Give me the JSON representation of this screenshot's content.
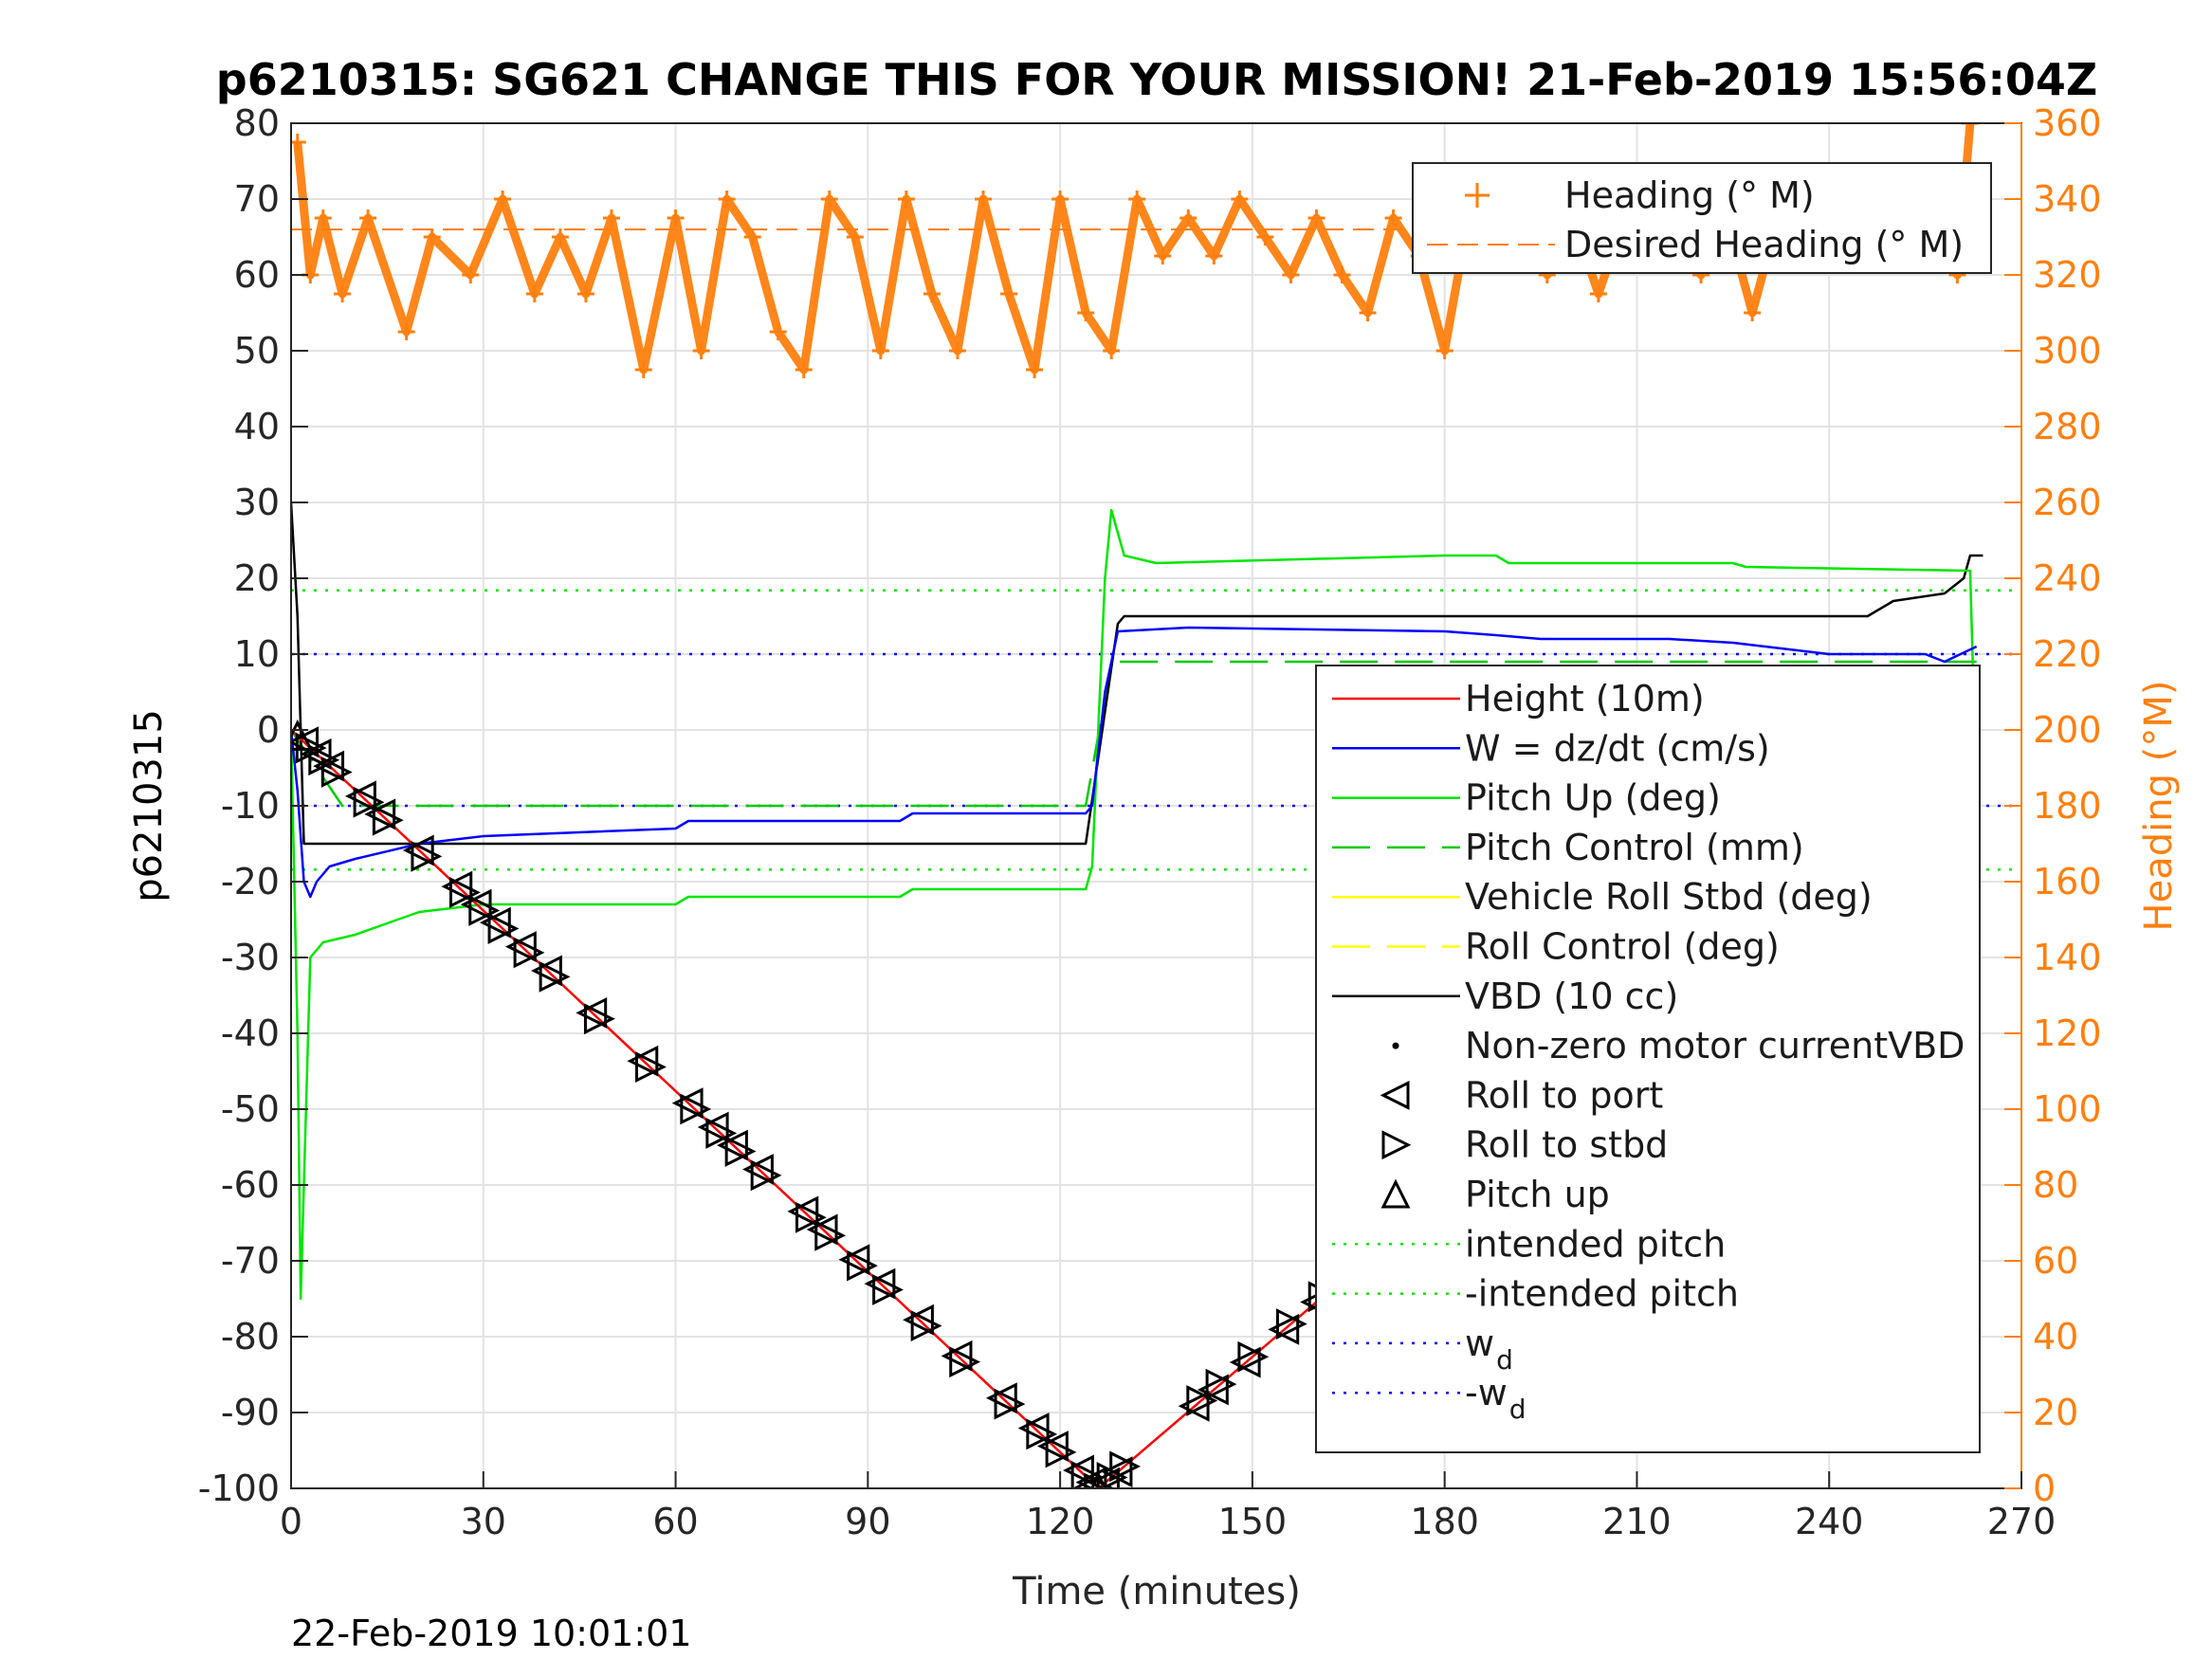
{
  "chart_data": {
    "type": "line",
    "title": "p6210315: SG621 CHANGE THIS FOR YOUR MISSION! 21-Feb-2019 15:56:04Z",
    "xlabel": "Time (minutes)",
    "ylabel_left": "p6210315",
    "ylabel_right": "Heading (°M)",
    "footer": "22-Feb-2019 10:01:01",
    "xlim": [
      0,
      270
    ],
    "ylim_left": [
      -100,
      80
    ],
    "ylim_right": [
      0,
      360
    ],
    "xticks": [
      "0",
      "30",
      "60",
      "90",
      "120",
      "150",
      "180",
      "210",
      "240",
      "270"
    ],
    "yticks_left": [
      "80",
      "70",
      "60",
      "50",
      "40",
      "30",
      "20",
      "10",
      "0",
      "-10",
      "-20",
      "-30",
      "-40",
      "-50",
      "-60",
      "-70",
      "-80",
      "-90",
      "-100"
    ],
    "yticks_right": [
      "360",
      "340",
      "320",
      "300",
      "280",
      "260",
      "240",
      "220",
      "200",
      "180",
      "160",
      "140",
      "120",
      "100",
      "80",
      "60",
      "40",
      "20",
      "0"
    ],
    "grid": true,
    "legend_top": {
      "placement": "top-right",
      "entries": [
        "Heading (° M)",
        "Desired Heading (° M)"
      ]
    },
    "legend_main": {
      "placement": "center-right",
      "entries": [
        {
          "label": "Height (10m)"
        },
        {
          "label": "W = dz/dt (cm/s)"
        },
        {
          "label": "Pitch Up (deg)"
        },
        {
          "label": "Pitch Control (mm)"
        },
        {
          "label": "Vehicle Roll Stbd (deg)"
        },
        {
          "label": "Roll Control (deg)"
        },
        {
          "label": "VBD (10 cc)"
        },
        {
          "label": "Non-zero motor currentVBD"
        },
        {
          "label": "Roll to port"
        },
        {
          "label": "Roll to stbd"
        },
        {
          "label": "Pitch up"
        },
        {
          "label": "intended pitch"
        },
        {
          "label": "-intended pitch"
        },
        {
          "label": "w",
          "sub": "d"
        },
        {
          "label": "-w",
          "sub": "d"
        }
      ]
    },
    "colors": {
      "height": "#ff0000",
      "w": "#0000ff",
      "pitch": "#00e600",
      "pitch_control": "#00cc00",
      "roll": "#ffff00",
      "roll_control": "#ffff00",
      "vbd": "#000000",
      "heading": "#ff7f0e",
      "intended_pitch": "#00e600",
      "wd": "#0000ff",
      "axis_right": "#ff7f0e"
    },
    "series": [
      {
        "name": "Height (10m)",
        "axis": "left",
        "points": [
          [
            0,
            0
          ],
          [
            126,
            -100
          ],
          [
            263,
            -1
          ]
        ]
      },
      {
        "name": "W = dz/dt (cm/s)",
        "axis": "left",
        "points": [
          [
            0,
            0
          ],
          [
            1,
            -8
          ],
          [
            2,
            -20
          ],
          [
            3,
            -22
          ],
          [
            4,
            -20
          ],
          [
            6,
            -18
          ],
          [
            10,
            -17
          ],
          [
            20,
            -15
          ],
          [
            30,
            -14
          ],
          [
            60,
            -13
          ],
          [
            62,
            -12
          ],
          [
            95,
            -12
          ],
          [
            97,
            -11
          ],
          [
            124,
            -11
          ],
          [
            125,
            -10
          ],
          [
            127,
            5
          ],
          [
            129,
            13
          ],
          [
            140,
            13.5
          ],
          [
            180,
            13
          ],
          [
            188,
            12.5
          ],
          [
            195,
            12
          ],
          [
            215,
            12
          ],
          [
            225,
            11.5
          ],
          [
            240,
            10
          ],
          [
            255,
            10
          ],
          [
            258,
            9
          ],
          [
            263,
            11
          ]
        ]
      },
      {
        "name": "Pitch Up (deg)",
        "axis": "left",
        "points": [
          [
            0,
            0
          ],
          [
            1,
            -40
          ],
          [
            1.5,
            -75
          ],
          [
            2,
            -60
          ],
          [
            3,
            -30
          ],
          [
            5,
            -28
          ],
          [
            10,
            -27
          ],
          [
            20,
            -24
          ],
          [
            30,
            -23
          ],
          [
            60,
            -23
          ],
          [
            62,
            -22
          ],
          [
            95,
            -22
          ],
          [
            97,
            -21
          ],
          [
            124,
            -21
          ],
          [
            125,
            -18
          ],
          [
            127,
            20
          ],
          [
            128,
            29
          ],
          [
            130,
            23
          ],
          [
            135,
            22
          ],
          [
            180,
            23
          ],
          [
            188,
            23
          ],
          [
            190,
            22
          ],
          [
            225,
            22
          ],
          [
            227,
            21.5
          ],
          [
            262,
            21
          ],
          [
            263,
            -9
          ]
        ]
      },
      {
        "name": "Pitch Control (mm)",
        "axis": "left",
        "points": [
          [
            0,
            0
          ],
          [
            8,
            -10
          ],
          [
            124,
            -10
          ],
          [
            128,
            9
          ],
          [
            263,
            9
          ]
        ]
      },
      {
        "name": "VBD (10 cc)",
        "axis": "left",
        "points": [
          [
            0,
            30
          ],
          [
            1,
            15
          ],
          [
            2,
            -15
          ],
          [
            124,
            -15
          ],
          [
            129,
            14
          ],
          [
            130,
            15
          ],
          [
            246,
            15
          ],
          [
            248,
            16
          ],
          [
            250,
            17
          ],
          [
            258,
            18
          ],
          [
            261,
            20
          ],
          [
            262,
            23
          ],
          [
            264,
            23
          ]
        ]
      },
      {
        "name": "Heading (° M)",
        "axis": "right",
        "points": [
          [
            1,
            355
          ],
          [
            3,
            320
          ],
          [
            5,
            335
          ],
          [
            8,
            315
          ],
          [
            12,
            335
          ],
          [
            18,
            305
          ],
          [
            22,
            330
          ],
          [
            28,
            320
          ],
          [
            33,
            340
          ],
          [
            38,
            315
          ],
          [
            42,
            330
          ],
          [
            46,
            315
          ],
          [
            50,
            335
          ],
          [
            55,
            295
          ],
          [
            60,
            335
          ],
          [
            64,
            300
          ],
          [
            68,
            340
          ],
          [
            72,
            330
          ],
          [
            76,
            305
          ],
          [
            80,
            295
          ],
          [
            84,
            340
          ],
          [
            88,
            330
          ],
          [
            92,
            300
          ],
          [
            96,
            340
          ],
          [
            100,
            315
          ],
          [
            104,
            300
          ],
          [
            108,
            340
          ],
          [
            112,
            315
          ],
          [
            116,
            295
          ],
          [
            120,
            340
          ],
          [
            124,
            310
          ],
          [
            128,
            300
          ],
          [
            132,
            340
          ],
          [
            136,
            325
          ],
          [
            140,
            335
          ],
          [
            144,
            325
          ],
          [
            148,
            340
          ],
          [
            152,
            330
          ],
          [
            156,
            320
          ],
          [
            160,
            335
          ],
          [
            164,
            320
          ],
          [
            168,
            310
          ],
          [
            172,
            335
          ],
          [
            176,
            325
          ],
          [
            180,
            300
          ],
          [
            184,
            338
          ],
          [
            188,
            340
          ],
          [
            192,
            330
          ],
          [
            196,
            320
          ],
          [
            200,
            335
          ],
          [
            204,
            315
          ],
          [
            208,
            335
          ],
          [
            212,
            325
          ],
          [
            216,
            330
          ],
          [
            220,
            320
          ],
          [
            224,
            335
          ],
          [
            228,
            310
          ],
          [
            232,
            335
          ],
          [
            236,
            345
          ],
          [
            240,
            340
          ],
          [
            244,
            345
          ],
          [
            248,
            325
          ],
          [
            252,
            335
          ],
          [
            256,
            330
          ],
          [
            260,
            320
          ],
          [
            262,
            360
          ]
        ]
      },
      {
        "name": "Desired Heading (° M)",
        "axis": "right",
        "points": [
          [
            0,
            332
          ],
          [
            264,
            332
          ]
        ]
      }
    ],
    "reference_lines": [
      {
        "name": "intended pitch",
        "axis": "left",
        "y": 18.4
      },
      {
        "name": "-intended pitch",
        "axis": "left",
        "y": -18.4
      },
      {
        "name": "w_d",
        "axis": "left",
        "y": 10
      },
      {
        "name": "-w_d",
        "axis": "left",
        "y": -10
      }
    ],
    "markers": {
      "roll_to_port": [
        2,
        4,
        6,
        11,
        14,
        20,
        26,
        29,
        32,
        36,
        40,
        47,
        55,
        62,
        66,
        69,
        73,
        80,
        83,
        88,
        92,
        98,
        104,
        111,
        116,
        119,
        123,
        125,
        127,
        129,
        141,
        144,
        149,
        155,
        160,
        168,
        174,
        181,
        186,
        193,
        200,
        208,
        216,
        223,
        230,
        237,
        248,
        251,
        255,
        258,
        260
      ],
      "roll_to_stbd": [
        3,
        5,
        7,
        12,
        15,
        21,
        27,
        30,
        33,
        37,
        41,
        48,
        56,
        63,
        67,
        70,
        74,
        81,
        84,
        89,
        93,
        99,
        105,
        112,
        117,
        120,
        124,
        126,
        128,
        130,
        142,
        145,
        150,
        156,
        161,
        169,
        175,
        182,
        187,
        194,
        201,
        209,
        217,
        224,
        231,
        238,
        249,
        252,
        256,
        259,
        261
      ],
      "pitch_up": [
        1,
        126
      ]
    }
  }
}
